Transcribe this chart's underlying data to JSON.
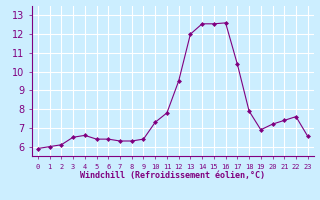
{
  "x": [
    0,
    1,
    2,
    3,
    4,
    5,
    6,
    7,
    8,
    9,
    10,
    11,
    12,
    13,
    14,
    15,
    16,
    17,
    18,
    19,
    20,
    21,
    22,
    23
  ],
  "y": [
    5.9,
    6.0,
    6.1,
    6.5,
    6.6,
    6.4,
    6.4,
    6.3,
    6.3,
    6.4,
    7.3,
    7.8,
    9.5,
    12.0,
    12.55,
    12.55,
    12.6,
    10.4,
    7.9,
    6.9,
    7.2,
    7.4,
    7.6,
    6.55
  ],
  "line_color": "#800080",
  "marker": "D",
  "marker_size": 2.0,
  "bg_color": "#cceeff",
  "grid_color": "#ffffff",
  "ylim": [
    5.5,
    13.5
  ],
  "xlim": [
    -0.5,
    23.5
  ],
  "yticks": [
    6,
    7,
    8,
    9,
    10,
    11,
    12,
    13
  ],
  "xtick_labels": [
    "0",
    "1",
    "2",
    "3",
    "4",
    "5",
    "6",
    "7",
    "8",
    "9",
    "10",
    "11",
    "12",
    "13",
    "14",
    "15",
    "16",
    "17",
    "18",
    "19",
    "20",
    "21",
    "22",
    "23"
  ],
  "xlabel": "Windchill (Refroidissement éolien,°C)",
  "xlabel_color": "#800080",
  "tick_color": "#800080",
  "axis_color": "#800080",
  "ytick_fontsize": 7,
  "xtick_fontsize": 5,
  "xlabel_fontsize": 6
}
